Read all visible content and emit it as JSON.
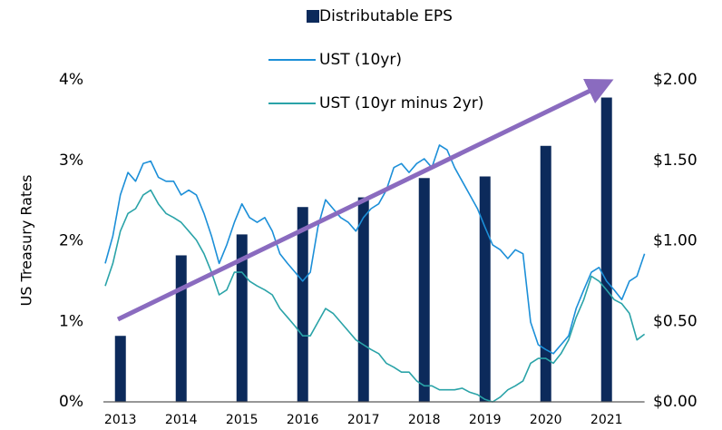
{
  "chart_data": {
    "type": "bar+line",
    "ylabel": "US Treasury Rates",
    "ylim": [
      0,
      4
    ],
    "yticks": [
      {
        "value": 0,
        "label": "0%"
      },
      {
        "value": 1,
        "label": "1%"
      },
      {
        "value": 2,
        "label": "2%"
      },
      {
        "value": 3,
        "label": "3%"
      },
      {
        "value": 4,
        "label": "4%"
      }
    ],
    "y2lim": [
      0,
      2
    ],
    "y2ticks": [
      {
        "value": 0,
        "label": "$0.00"
      },
      {
        "value": 0.5,
        "label": "$0.50"
      },
      {
        "value": 1,
        "label": "$1.00"
      },
      {
        "value": 1.5,
        "label": "$1.50"
      },
      {
        "value": 2,
        "label": "$2.00"
      }
    ],
    "xlim": [
      2012.75,
      2021.625
    ],
    "xticks": [
      2013,
      2014,
      2015,
      2016,
      2017,
      2018,
      2019,
      2020,
      2021
    ],
    "x": [
      2012.75,
      2012.875,
      2013,
      2013.125,
      2013.25,
      2013.375,
      2013.5,
      2013.625,
      2013.75,
      2013.875,
      2014,
      2014.125,
      2014.25,
      2014.375,
      2014.5,
      2014.625,
      2014.75,
      2014.875,
      2015,
      2015.125,
      2015.25,
      2015.375,
      2015.5,
      2015.625,
      2015.75,
      2015.875,
      2016,
      2016.125,
      2016.25,
      2016.375,
      2016.5,
      2016.625,
      2016.75,
      2016.875,
      2017,
      2017.125,
      2017.25,
      2017.375,
      2017.5,
      2017.625,
      2017.75,
      2017.875,
      2018,
      2018.125,
      2018.25,
      2018.375,
      2018.5,
      2018.625,
      2018.75,
      2018.875,
      2019,
      2019.125,
      2019.25,
      2019.375,
      2019.5,
      2019.625,
      2019.75,
      2019.875,
      2020,
      2020.125,
      2020.25,
      2020.375,
      2020.5,
      2020.625,
      2020.75,
      2020.875,
      2021,
      2021.125,
      2021.25,
      2021.375,
      2021.5,
      2021.625
    ],
    "series": [
      {
        "name": "Distributable EPS",
        "kind": "bar",
        "axis": "y2",
        "color": "#0c2a5b",
        "x": [
          2013,
          2014,
          2015,
          2016,
          2017,
          2018,
          2019,
          2020,
          2021
        ],
        "values": [
          0.41,
          0.91,
          1.04,
          1.21,
          1.27,
          1.39,
          1.4,
          1.59,
          1.89
        ]
      },
      {
        "name": "UST (10yr)",
        "kind": "line",
        "color": "#1c8fd8",
        "values": [
          1.72,
          2.06,
          2.57,
          2.85,
          2.74,
          2.96,
          2.99,
          2.79,
          2.74,
          2.74,
          2.57,
          2.63,
          2.57,
          2.34,
          2.06,
          1.72,
          1.95,
          2.23,
          2.46,
          2.29,
          2.23,
          2.29,
          2.12,
          1.84,
          1.72,
          1.61,
          1.5,
          1.61,
          2.17,
          2.51,
          2.4,
          2.29,
          2.23,
          2.12,
          2.29,
          2.4,
          2.46,
          2.63,
          2.91,
          2.96,
          2.85,
          2.96,
          3.02,
          2.91,
          3.19,
          3.13,
          2.91,
          2.74,
          2.57,
          2.4,
          2.17,
          1.95,
          1.89,
          1.78,
          1.89,
          1.84,
          0.99,
          0.71,
          0.65,
          0.6,
          0.71,
          0.82,
          1.16,
          1.39,
          1.61,
          1.67,
          1.5,
          1.39,
          1.27,
          1.5,
          1.56,
          1.84
        ]
      },
      {
        "name": "UST (10yr minus 2yr)",
        "kind": "line",
        "color": "#2aa3a8",
        "values": [
          1.44,
          1.72,
          2.12,
          2.34,
          2.4,
          2.57,
          2.63,
          2.46,
          2.34,
          2.29,
          2.23,
          2.12,
          2.01,
          1.84,
          1.61,
          1.33,
          1.39,
          1.61,
          1.61,
          1.5,
          1.44,
          1.39,
          1.33,
          1.16,
          1.05,
          0.94,
          0.82,
          0.82,
          0.99,
          1.16,
          1.1,
          0.99,
          0.88,
          0.77,
          0.71,
          0.65,
          0.6,
          0.48,
          0.43,
          0.37,
          0.37,
          0.26,
          0.2,
          0.2,
          0.15,
          0.15,
          0.15,
          0.17,
          0.12,
          0.09,
          0.03,
          0.0,
          0.06,
          0.15,
          0.2,
          0.26,
          0.48,
          0.54,
          0.54,
          0.48,
          0.6,
          0.77,
          1.05,
          1.27,
          1.56,
          1.5,
          1.39,
          1.27,
          1.22,
          1.1,
          0.77,
          0.84
        ]
      }
    ]
  }
}
